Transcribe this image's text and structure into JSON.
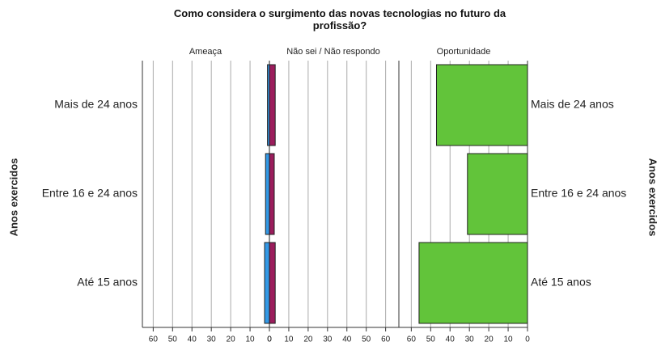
{
  "chart_data": {
    "type": "pyramid",
    "title": "Como considera o surgimento das novas tecnologias no futuro da profissão?",
    "ylabel": "Anos exercidos",
    "categories": [
      "Mais de 24 anos",
      "Entre 16 e 24 anos",
      "Até 15 anos"
    ],
    "series": [
      {
        "name": "Ameaça",
        "color": "#3399e6",
        "values": [
          1,
          2,
          2.5
        ]
      },
      {
        "name": "Não sei / Não respondo",
        "color": "#9b1d5c",
        "values": [
          3,
          2.5,
          3
        ]
      },
      {
        "name": "Oportunidade",
        "color": "#62c43a",
        "values": [
          47,
          31,
          56
        ]
      }
    ],
    "xlim": [
      0,
      66
    ],
    "xticks": [
      0,
      10,
      20,
      30,
      40,
      50,
      60
    ],
    "grid": true
  }
}
